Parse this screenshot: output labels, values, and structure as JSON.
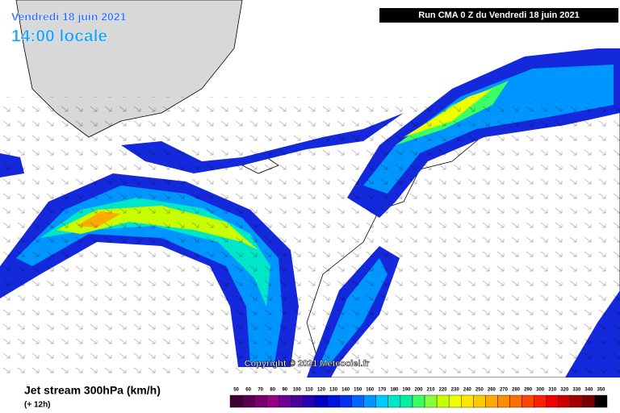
{
  "header": {
    "date": "Vendredi 18 juin 2021",
    "time": "14:00 locale",
    "run": "Run CMA 0 Z du Vendredi 18 juin 2021"
  },
  "copyright": "Copyright © 2021 Meteociel.fr",
  "footer": {
    "title": "Jet stream 300hPa (km/h)",
    "lead": "(+ 12h)"
  },
  "legend": {
    "values": [
      50,
      60,
      70,
      80,
      90,
      100,
      110,
      120,
      130,
      140,
      150,
      160,
      170,
      180,
      190,
      200,
      210,
      220,
      230,
      240,
      250,
      260,
      270,
      280,
      290,
      300,
      310,
      320,
      330,
      340,
      350
    ],
    "colors": [
      "#3c0032",
      "#5a0050",
      "#78006e",
      "#960082",
      "#6e0096",
      "#4600a0",
      "#2800b4",
      "#0000c8",
      "#0014dc",
      "#0032f0",
      "#0064ff",
      "#0096ff",
      "#00c8ff",
      "#00e6c8",
      "#00f0a0",
      "#3cff64",
      "#8cff3c",
      "#c8ff00",
      "#f0ff00",
      "#ffe600",
      "#ffc800",
      "#ffaa00",
      "#ff8c00",
      "#ff6e00",
      "#ff4600",
      "#ff1e00",
      "#f00000",
      "#c80000",
      "#a00000",
      "#780000",
      "#000000"
    ]
  }
}
